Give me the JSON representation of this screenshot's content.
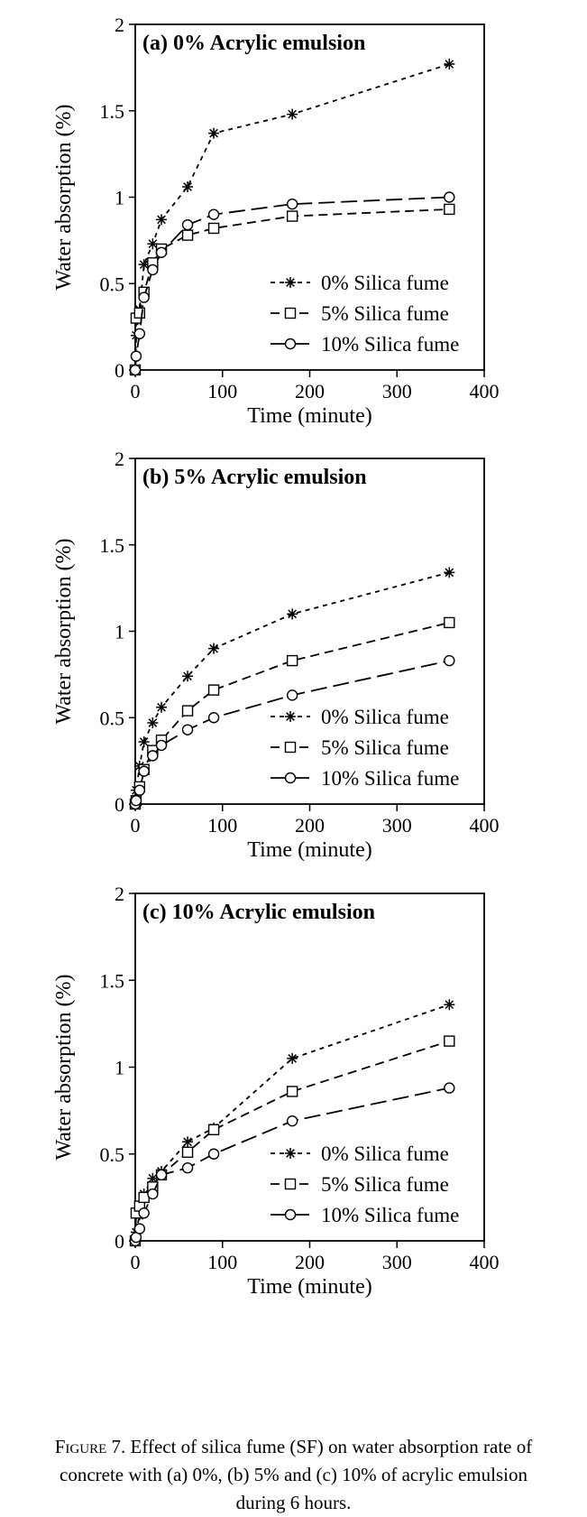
{
  "chart_data": [
    {
      "type": "line",
      "title": "(a) 0% Acrylic emulsion",
      "xlabel": "Time (minute)",
      "ylabel": "Water absorption (%)",
      "xlim": [
        0,
        400
      ],
      "ylim": [
        0,
        2
      ],
      "xticks": [
        "0",
        "100",
        "200",
        "300",
        "400"
      ],
      "yticks": [
        "0",
        "0.5",
        "1",
        "1.5",
        "2"
      ],
      "grid": false,
      "legend_position": "bottom-right",
      "series": [
        {
          "name": "0% Silica fume",
          "marker": "asterisk",
          "dash": "short",
          "x": [
            0,
            1,
            5,
            10,
            20,
            30,
            60,
            90,
            180,
            360
          ],
          "y": [
            0,
            0.2,
            0.35,
            0.61,
            0.73,
            0.87,
            1.06,
            1.37,
            1.48,
            1.77
          ]
        },
        {
          "name": "5% Silica fume",
          "marker": "square",
          "dash": "medium",
          "x": [
            0,
            1,
            5,
            10,
            20,
            30,
            60,
            90,
            180,
            360
          ],
          "y": [
            0,
            0.3,
            0.33,
            0.45,
            0.62,
            0.7,
            0.78,
            0.82,
            0.89,
            0.93
          ]
        },
        {
          "name": "10% Silica fume",
          "marker": "circle",
          "dash": "long",
          "x": [
            0,
            1,
            5,
            10,
            20,
            30,
            60,
            90,
            180,
            360
          ],
          "y": [
            0,
            0.08,
            0.21,
            0.42,
            0.58,
            0.68,
            0.84,
            0.9,
            0.96,
            1.0
          ]
        }
      ]
    },
    {
      "type": "line",
      "title": "(b) 5% Acrylic emulsion",
      "xlabel": "Time (minute)",
      "ylabel": "Water absorption (%)",
      "xlim": [
        0,
        400
      ],
      "ylim": [
        0,
        2
      ],
      "xticks": [
        "0",
        "100",
        "200",
        "300",
        "400"
      ],
      "yticks": [
        "0",
        "0.5",
        "1",
        "1.5",
        "2"
      ],
      "grid": false,
      "legend_position": "bottom-right",
      "series": [
        {
          "name": "0% Silica fume",
          "marker": "asterisk",
          "dash": "short",
          "x": [
            0,
            1,
            5,
            10,
            20,
            30,
            60,
            90,
            180,
            360
          ],
          "y": [
            0,
            0.08,
            0.22,
            0.36,
            0.47,
            0.56,
            0.74,
            0.9,
            1.1,
            1.34
          ]
        },
        {
          "name": "5% Silica fume",
          "marker": "square",
          "dash": "medium",
          "x": [
            0,
            1,
            5,
            10,
            20,
            30,
            60,
            90,
            180,
            360
          ],
          "y": [
            0,
            0.02,
            0.1,
            0.2,
            0.31,
            0.37,
            0.54,
            0.66,
            0.83,
            1.05
          ]
        },
        {
          "name": "10% Silica fume",
          "marker": "circle",
          "dash": "long",
          "x": [
            0,
            1,
            5,
            10,
            20,
            30,
            60,
            90,
            180,
            360
          ],
          "y": [
            0,
            0.02,
            0.08,
            0.19,
            0.28,
            0.34,
            0.43,
            0.5,
            0.63,
            0.83
          ]
        }
      ]
    },
    {
      "type": "line",
      "title": "(c) 10% Acrylic emulsion",
      "xlabel": "Time (minute)",
      "ylabel": "Water absorption (%)",
      "xlim": [
        0,
        400
      ],
      "ylim": [
        0,
        2
      ],
      "xticks": [
        "0",
        "100",
        "200",
        "300",
        "400"
      ],
      "yticks": [
        "0",
        "0.5",
        "1",
        "1.5",
        "2"
      ],
      "grid": false,
      "legend_position": "bottom-right",
      "series": [
        {
          "name": "0% Silica fume",
          "marker": "asterisk",
          "dash": "short",
          "x": [
            0,
            1,
            5,
            10,
            20,
            30,
            60,
            90,
            180,
            360
          ],
          "y": [
            0,
            0.05,
            0.15,
            0.27,
            0.36,
            0.4,
            0.57,
            0.65,
            1.05,
            1.36
          ]
        },
        {
          "name": "5% Silica fume",
          "marker": "square",
          "dash": "medium",
          "x": [
            0,
            1,
            5,
            10,
            20,
            30,
            60,
            90,
            180,
            360
          ],
          "y": [
            0,
            0.16,
            0.2,
            0.25,
            0.31,
            0.38,
            0.51,
            0.64,
            0.86,
            1.15
          ]
        },
        {
          "name": "10% Silica fume",
          "marker": "circle",
          "dash": "long",
          "x": [
            0,
            1,
            5,
            10,
            20,
            30,
            60,
            90,
            180,
            360
          ],
          "y": [
            0,
            0.02,
            0.07,
            0.16,
            0.27,
            0.38,
            0.42,
            0.5,
            0.69,
            0.88
          ]
        }
      ]
    }
  ],
  "caption": {
    "lead": "Figure 7.",
    "line1": " Effect of silica fume (SF) on water absorption rate of",
    "line2": "concrete with (a) 0%, (b) 5% and (c) 10% of acrylic emulsion",
    "line3": "during 6 hours."
  }
}
